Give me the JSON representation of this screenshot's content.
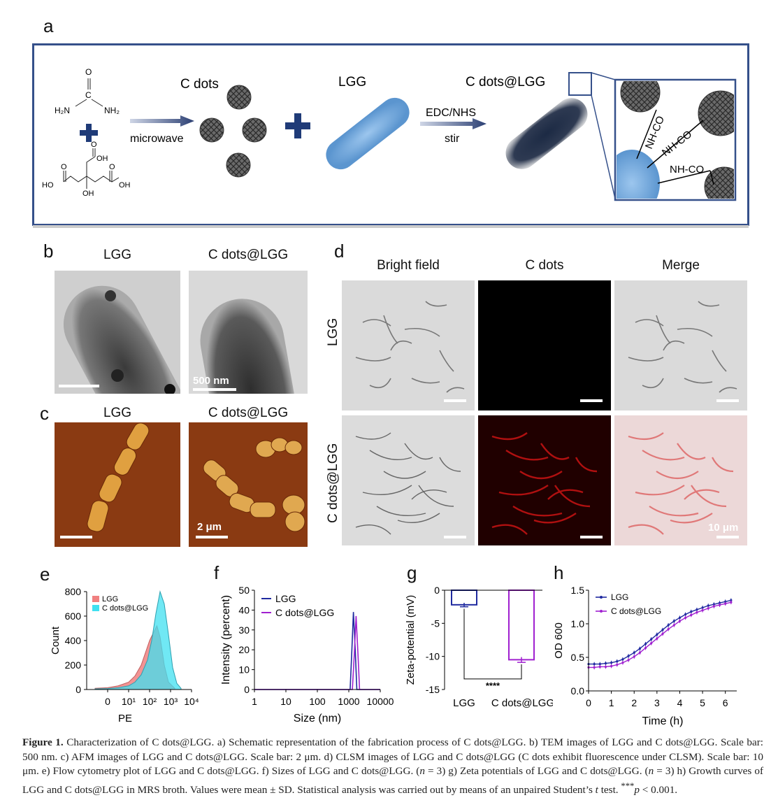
{
  "panels": {
    "a": "a",
    "b": "b",
    "c": "c",
    "d": "d",
    "e": "e",
    "f": "f",
    "g": "g",
    "h": "h"
  },
  "scheme": {
    "c_dots": "C dots",
    "lgg": "LGG",
    "c_dots_lgg": "C dots@LGG",
    "microwave": "microwave",
    "edc_nhs": "EDC/NHS",
    "stir": "stir",
    "urea_o": "O",
    "urea_c": "C",
    "urea_h2n": "H₂N",
    "urea_nh2": "NH₂",
    "citric_oh1": "OH",
    "citric_o1": "O",
    "citric_o2": "O",
    "citric_o3": "O",
    "citric_ho": "HO",
    "citric_oh2": "OH",
    "citric_oh3": "OH",
    "link1": "NH-CO",
    "link2": "NH-CO",
    "link3": "NH-CO"
  },
  "panel_b": {
    "lgg": "LGG",
    "cdots_lgg": "C dots@LGG",
    "scale": "500 nm"
  },
  "panel_c": {
    "lgg": "LGG",
    "cdots_lgg": "C dots@LGG",
    "scale": "2 μm"
  },
  "panel_d": {
    "col1": "Bright field",
    "col2": "C dots",
    "col3": "Merge",
    "row1": "LGG",
    "row2": "C dots@LGG",
    "scale": "10 μm"
  },
  "colors": {
    "lgg": "#1f2aa0",
    "cdots": "#a020d0",
    "hist_lgg": "#f08080",
    "hist_cdots": "#40e0f0"
  },
  "chart_data": [
    {
      "panel": "e",
      "type": "area",
      "xlabel": "PE",
      "ylabel": "Count",
      "yticks": [
        0,
        200,
        400,
        600,
        800
      ],
      "xticks": [
        "0",
        "10¹",
        "10²",
        "10³",
        "10⁴"
      ],
      "series": [
        {
          "name": "LGG",
          "x": [
            -0.6,
            0,
            0.5,
            1.0,
            1.3,
            1.6,
            1.8,
            2.0,
            2.2,
            2.35,
            2.5,
            2.7,
            2.9,
            3.2
          ],
          "values": [
            10,
            15,
            30,
            60,
            110,
            200,
            300,
            400,
            470,
            520,
            430,
            200,
            60,
            10
          ]
        },
        {
          "name": "C dots@LGG",
          "x": [
            -0.6,
            0,
            0.5,
            1.0,
            1.3,
            1.6,
            1.9,
            2.1,
            2.3,
            2.5,
            2.7,
            2.9,
            3.1,
            3.3,
            3.5
          ],
          "values": [
            5,
            8,
            15,
            30,
            60,
            120,
            240,
            400,
            620,
            800,
            700,
            450,
            180,
            50,
            10
          ]
        }
      ]
    },
    {
      "panel": "f",
      "type": "line",
      "xlabel": "Size (nm)",
      "ylabel": "Intensity (percent)",
      "xscale": "log",
      "xlim": [
        1,
        10000
      ],
      "ylim": [
        0,
        50
      ],
      "xticks": [
        "1",
        "10",
        "100",
        "1000",
        "10000"
      ],
      "yticks": [
        0,
        10,
        20,
        30,
        40,
        50
      ],
      "series": [
        {
          "name": "LGG",
          "x": [
            1,
            1100,
            1250,
            1400,
            1600,
            1800,
            10000
          ],
          "values": [
            0,
            0,
            20,
            39,
            20,
            0,
            0
          ]
        },
        {
          "name": "C dots@LGG",
          "x": [
            1,
            1300,
            1500,
            1700,
            1950,
            2200,
            10000
          ],
          "values": [
            0,
            0,
            18,
            37,
            18,
            0,
            0
          ]
        }
      ]
    },
    {
      "panel": "g",
      "type": "bar",
      "ylabel": "Zeta-potential (mV)",
      "categories": [
        "LGG",
        "C dots@LGG"
      ],
      "values": [
        -2.2,
        -10.5
      ],
      "errors": [
        0.3,
        0.4
      ],
      "ylim": [
        -15,
        0
      ],
      "yticks": [
        0,
        -5,
        -10,
        -15
      ],
      "significance": "****"
    },
    {
      "panel": "h",
      "type": "line",
      "xlabel": "Time (h)",
      "ylabel": "OD 600",
      "xlim": [
        0,
        6.5
      ],
      "ylim": [
        0,
        1.5
      ],
      "xticks": [
        0,
        1,
        2,
        3,
        4,
        5,
        6
      ],
      "yticks": [
        "0.0",
        "0.5",
        "1.0",
        "1.5"
      ],
      "series": [
        {
          "name": "LGG",
          "x": [
            0,
            0.25,
            0.5,
            0.75,
            1,
            1.25,
            1.5,
            1.75,
            2,
            2.25,
            2.5,
            2.75,
            3,
            3.25,
            3.5,
            3.75,
            4,
            4.25,
            4.5,
            4.75,
            5,
            5.25,
            5.5,
            5.75,
            6,
            6.25
          ],
          "values": [
            0.4,
            0.4,
            0.4,
            0.41,
            0.42,
            0.44,
            0.47,
            0.52,
            0.57,
            0.63,
            0.7,
            0.77,
            0.84,
            0.91,
            0.98,
            1.04,
            1.09,
            1.14,
            1.18,
            1.21,
            1.24,
            1.27,
            1.29,
            1.31,
            1.33,
            1.35
          ]
        },
        {
          "name": "C dots@LGG",
          "x": [
            0,
            0.25,
            0.5,
            0.75,
            1,
            1.25,
            1.5,
            1.75,
            2,
            2.25,
            2.5,
            2.75,
            3,
            3.25,
            3.5,
            3.75,
            4,
            4.25,
            4.5,
            4.75,
            5,
            5.25,
            5.5,
            5.75,
            6,
            6.25
          ],
          "values": [
            0.35,
            0.35,
            0.36,
            0.36,
            0.37,
            0.39,
            0.42,
            0.46,
            0.51,
            0.57,
            0.64,
            0.71,
            0.78,
            0.85,
            0.92,
            0.98,
            1.04,
            1.09,
            1.13,
            1.17,
            1.2,
            1.23,
            1.26,
            1.28,
            1.3,
            1.32
          ]
        }
      ]
    }
  ],
  "caption": {
    "label": "Figure 1.",
    "text_html": "Characterization of C dots@LGG. a) Schematic representation of the fabrication process of C dots@LGG. b) TEM images of LGG and C dots@LGG. Scale bar: 500 nm. c) AFM images of LGG and C dots@LGG. Scale bar: 2 μm. d) CLSM images of LGG and C dots@LGG (C dots exhibit fluorescence under CLSM). Scale bar: 10 μm. e) Flow cytometry plot of LGG and C dots@LGG. f) Sizes of LGG and C dots@LGG. (<i>n</i> = 3) g) Zeta potentials of LGG and C dots@LGG. (<i>n</i> = 3) h) Growth curves of LGG and C dots@LGG in MRS broth. Values were mean ± SD. Statistical analysis was carried out by means of an unpaired Student’s <i>t</i> test. <sup>***</sup><i>p</i> &lt; 0.001."
  }
}
